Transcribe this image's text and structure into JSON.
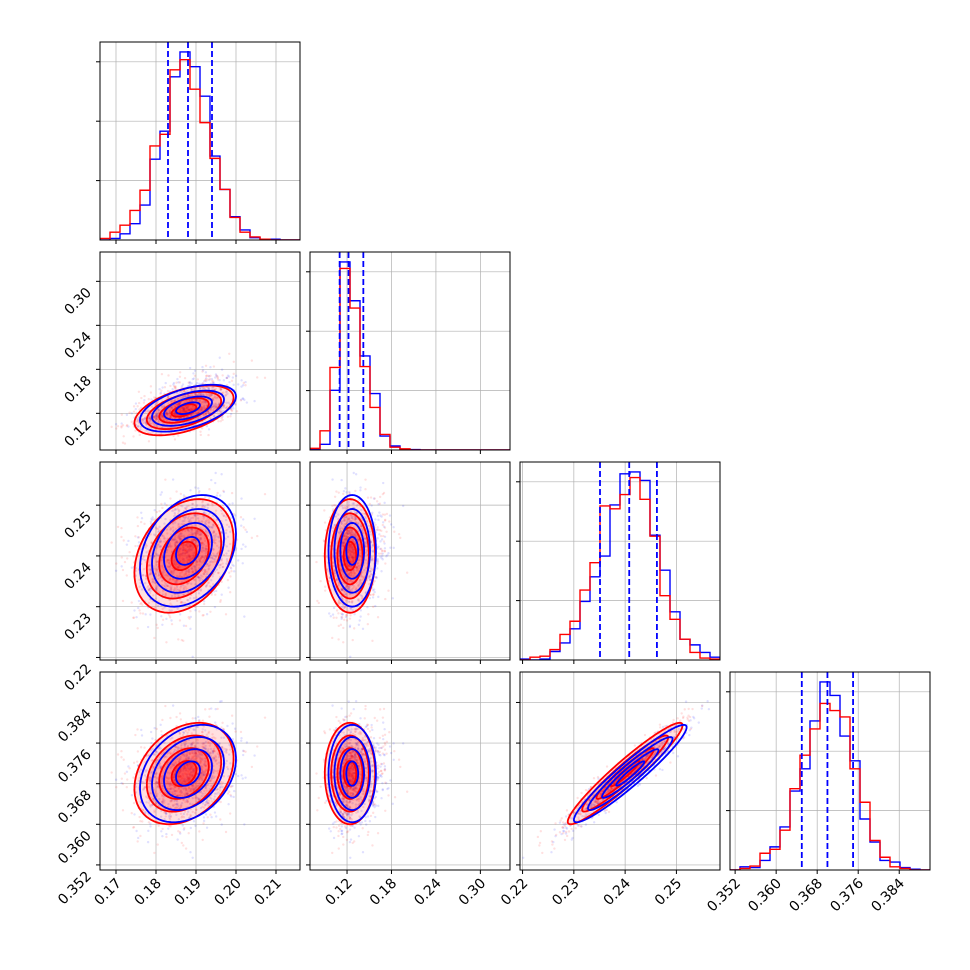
{
  "figure": {
    "type": "corner-plot",
    "colors": {
      "series_a": "#0000ff",
      "series_b": "#ff0000",
      "quantile_lines": "#0000ff",
      "grid": "#b0b0b0"
    }
  },
  "chart_data": {
    "type": "corner",
    "grid": true,
    "series": [
      {
        "color": "#0000ff",
        "mean": [
          0.188,
          0.127,
          0.241,
          0.37
        ],
        "sd": [
          0.006,
          0.016,
          0.0055,
          0.0048
        ],
        "corr": [
          [
            1,
            0.5,
            0.3,
            0.3
          ],
          [
            0.5,
            1,
            0.0,
            0.0
          ],
          [
            0.3,
            0.0,
            1,
            0.95
          ],
          [
            0.3,
            0.0,
            0.95,
            1
          ]
        ]
      },
      {
        "color": "#ff0000",
        "mean": [
          0.187,
          0.124,
          0.24,
          0.37
        ],
        "sd": [
          0.0062,
          0.017,
          0.0056,
          0.005
        ],
        "corr": [
          [
            1,
            0.5,
            0.3,
            0.3
          ],
          [
            0.5,
            1,
            0.0,
            0.0
          ],
          [
            0.3,
            0.0,
            1,
            0.95
          ],
          [
            0.3,
            0.0,
            0.95,
            1
          ]
        ]
      }
    ],
    "params": [
      {
        "range": [
          0.166,
          0.216
        ],
        "ticks": [
          0.17,
          0.18,
          0.19,
          0.2,
          0.21
        ],
        "tick_labels": [
          "0.17",
          "0.18",
          "0.19",
          "0.20",
          "0.21"
        ],
        "quantiles": [
          0.183,
          0.188,
          0.194
        ]
      },
      {
        "range": [
          0.07,
          0.34
        ],
        "ticks": [
          0.12,
          0.18,
          0.24,
          0.3
        ],
        "tick_labels": [
          "0.12",
          "0.18",
          "0.24",
          "0.30"
        ],
        "quantiles": [
          0.11,
          0.122,
          0.142
        ]
      },
      {
        "range": [
          0.2195,
          0.2585
        ],
        "ticks": [
          0.22,
          0.23,
          0.24,
          0.25
        ],
        "tick_labels": [
          "0.22",
          "0.23",
          "0.24",
          "0.25"
        ],
        "quantiles": [
          0.2351,
          0.2408,
          0.2462
        ]
      },
      {
        "range": [
          0.351,
          0.39
        ],
        "ticks": [
          0.352,
          0.36,
          0.368,
          0.376,
          0.384
        ],
        "tick_labels": [
          "0.352",
          "0.360",
          "0.368",
          "0.376",
          "0.384"
        ],
        "quantiles": [
          0.365,
          0.37,
          0.375
        ]
      }
    ]
  }
}
